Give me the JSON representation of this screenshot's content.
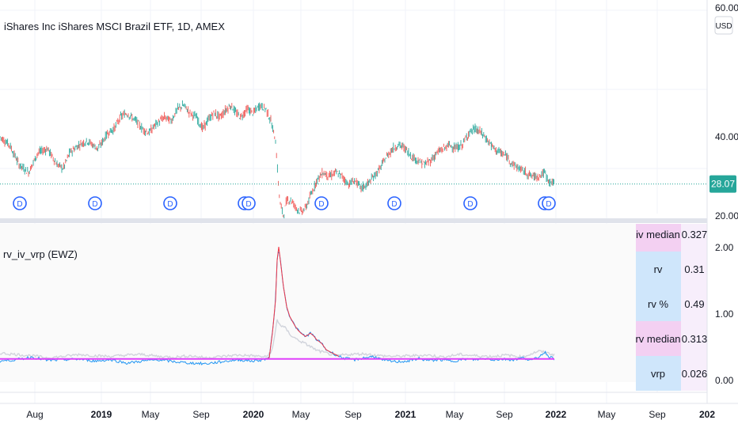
{
  "symbol_title": "iShares Inc iShares MSCI Brazil ETF, 1D, AMEX",
  "currency_button": "USD",
  "last_price_label": "28.07",
  "price_axis": {
    "top_partial": "60.00",
    "ticks": [
      {
        "value": 40,
        "label": "40.00"
      },
      {
        "value": 20,
        "label": "20.00"
      }
    ]
  },
  "dividend_marker_label": "D",
  "dividend_markers": [
    {
      "date": "2018-06",
      "double": false
    },
    {
      "date": "2018-12",
      "double": false
    },
    {
      "date": "2019-06",
      "double": false
    },
    {
      "date": "2019-12",
      "double": true
    },
    {
      "date": "2020-06",
      "double": false
    },
    {
      "date": "2020-12",
      "double": false
    },
    {
      "date": "2021-06",
      "double": false
    },
    {
      "date": "2021-12",
      "double": true
    }
  ],
  "indicator": {
    "title": "rv_iv_vrp (EWZ)",
    "axis_ticks": [
      {
        "value": 2,
        "label": "2.00"
      },
      {
        "value": 1,
        "label": "1.00"
      },
      {
        "value": 0,
        "label": "0.00"
      }
    ],
    "table": [
      {
        "label": "iv median",
        "value": "0.327",
        "color": "#f3d0f2"
      },
      {
        "label": "rv",
        "value": "0.31",
        "color": "#cfe6fb"
      },
      {
        "label": "rv %",
        "value": "0.49",
        "color": "#cfe6fb"
      },
      {
        "label": "rv median",
        "value": "0.313",
        "color": "#f3d0f2"
      },
      {
        "label": "vrp",
        "value": "0.026",
        "color": "#cfe6fb"
      }
    ]
  },
  "time_axis": [
    {
      "label": "Aug",
      "bold": false
    },
    {
      "label": "2019",
      "bold": true
    },
    {
      "label": "May",
      "bold": false
    },
    {
      "label": "Sep",
      "bold": false
    },
    {
      "label": "2020",
      "bold": true
    },
    {
      "label": "May",
      "bold": false
    },
    {
      "label": "Sep",
      "bold": false
    },
    {
      "label": "2021",
      "bold": true
    },
    {
      "label": "May",
      "bold": false
    },
    {
      "label": "Sep",
      "bold": false
    },
    {
      "label": "2022",
      "bold": true
    },
    {
      "label": "May",
      "bold": false
    },
    {
      "label": "Sep",
      "bold": false
    },
    {
      "label": "202",
      "bold": true
    }
  ],
  "colors": {
    "candle_up": "#26a69a",
    "candle_down": "#ef5350",
    "rv_line": "#2196f3",
    "rv_high": "#f23645",
    "iv_line": "#d1d4dc",
    "median_line": "#e040fb",
    "last_price_bg": "#26a69a",
    "dividend": "#2962ff"
  },
  "chart_data": {
    "type": "line",
    "title": "iShares Inc iShares MSCI Brazil ETF, 1D, AMEX",
    "ylim": [
      17,
      60
    ],
    "last_price": 28.07,
    "price_path": [
      [
        0,
        40
      ],
      [
        6,
        38
      ],
      [
        12,
        33
      ],
      [
        18,
        31
      ],
      [
        24,
        36
      ],
      [
        30,
        37
      ],
      [
        36,
        33
      ],
      [
        40,
        32
      ],
      [
        44,
        36
      ],
      [
        50,
        38
      ],
      [
        55,
        39
      ],
      [
        62,
        37
      ],
      [
        68,
        41
      ],
      [
        72,
        42
      ],
      [
        76,
        45
      ],
      [
        80,
        46
      ],
      [
        86,
        44
      ],
      [
        90,
        42
      ],
      [
        94,
        41
      ],
      [
        98,
        43
      ],
      [
        104,
        45
      ],
      [
        108,
        44
      ],
      [
        112,
        47
      ],
      [
        116,
        48
      ],
      [
        120,
        46
      ],
      [
        124,
        45
      ],
      [
        128,
        42
      ],
      [
        131,
        44
      ],
      [
        135,
        46
      ],
      [
        139,
        45
      ],
      [
        143,
        47
      ],
      [
        146,
        48
      ],
      [
        149,
        46
      ],
      [
        152,
        45
      ],
      [
        156,
        47
      ],
      [
        160,
        46
      ],
      [
        164,
        48
      ],
      [
        168,
        47
      ],
      [
        171,
        44
      ],
      [
        174,
        39
      ],
      [
        176,
        27
      ],
      [
        177,
        23
      ],
      [
        179,
        20
      ],
      [
        181,
        24
      ],
      [
        184,
        24
      ],
      [
        187,
        22
      ],
      [
        190,
        21
      ],
      [
        193,
        22
      ],
      [
        196,
        25
      ],
      [
        200,
        29
      ],
      [
        204,
        31
      ],
      [
        208,
        30
      ],
      [
        212,
        31
      ],
      [
        216,
        30
      ],
      [
        220,
        28
      ],
      [
        224,
        29
      ],
      [
        228,
        27
      ],
      [
        232,
        28
      ],
      [
        236,
        30
      ],
      [
        240,
        32
      ],
      [
        244,
        35
      ],
      [
        248,
        37
      ],
      [
        252,
        38
      ],
      [
        256,
        37
      ],
      [
        260,
        35
      ],
      [
        264,
        34
      ],
      [
        268,
        33
      ],
      [
        272,
        34
      ],
      [
        276,
        36
      ],
      [
        280,
        37
      ],
      [
        284,
        38
      ],
      [
        288,
        37
      ],
      [
        292,
        38
      ],
      [
        296,
        41
      ],
      [
        300,
        42
      ],
      [
        304,
        41
      ],
      [
        308,
        39
      ],
      [
        312,
        37
      ],
      [
        316,
        36
      ],
      [
        320,
        35
      ],
      [
        324,
        33
      ],
      [
        328,
        32
      ],
      [
        332,
        31
      ],
      [
        336,
        30
      ],
      [
        340,
        30
      ],
      [
        344,
        31
      ],
      [
        346,
        29
      ],
      [
        350,
        28.07
      ]
    ],
    "indicator": {
      "ylim": [
        0,
        2.1
      ],
      "median": 0.313,
      "rv_path": [
        [
          0,
          0.28
        ],
        [
          10,
          0.3
        ],
        [
          20,
          0.34
        ],
        [
          30,
          0.29
        ],
        [
          40,
          0.3
        ],
        [
          50,
          0.31
        ],
        [
          60,
          0.28
        ],
        [
          70,
          0.3
        ],
        [
          80,
          0.25
        ],
        [
          90,
          0.28
        ],
        [
          100,
          0.3
        ],
        [
          110,
          0.27
        ],
        [
          120,
          0.25
        ],
        [
          130,
          0.24
        ],
        [
          140,
          0.27
        ],
        [
          150,
          0.3
        ],
        [
          160,
          0.28
        ],
        [
          166,
          0.3
        ],
        [
          170,
          0.33
        ],
        [
          172,
          0.7
        ],
        [
          174,
          1.2
        ],
        [
          175,
          1.8
        ],
        [
          176,
          2.0
        ],
        [
          177,
          1.8
        ],
        [
          179,
          1.4
        ],
        [
          181,
          1.1
        ],
        [
          183,
          0.95
        ],
        [
          186,
          0.82
        ],
        [
          188,
          0.75
        ],
        [
          190,
          0.7
        ],
        [
          193,
          0.65
        ],
        [
          196,
          0.7
        ],
        [
          198,
          0.66
        ],
        [
          200,
          0.6
        ],
        [
          203,
          0.55
        ],
        [
          206,
          0.45
        ],
        [
          210,
          0.4
        ],
        [
          214,
          0.35
        ],
        [
          218,
          0.32
        ],
        [
          224,
          0.3
        ],
        [
          230,
          0.33
        ],
        [
          236,
          0.35
        ],
        [
          242,
          0.29
        ],
        [
          250,
          0.27
        ],
        [
          258,
          0.28
        ],
        [
          264,
          0.32
        ],
        [
          270,
          0.29
        ],
        [
          278,
          0.3
        ],
        [
          286,
          0.28
        ],
        [
          294,
          0.31
        ],
        [
          300,
          0.3
        ],
        [
          306,
          0.32
        ],
        [
          312,
          0.3
        ],
        [
          318,
          0.31
        ],
        [
          324,
          0.3
        ],
        [
          330,
          0.33
        ],
        [
          336,
          0.29
        ],
        [
          340,
          0.34
        ],
        [
          344,
          0.42
        ],
        [
          346,
          0.36
        ],
        [
          350,
          0.31
        ]
      ],
      "iv_path": [
        [
          0,
          0.4
        ],
        [
          10,
          0.38
        ],
        [
          20,
          0.36
        ],
        [
          30,
          0.33
        ],
        [
          40,
          0.35
        ],
        [
          50,
          0.38
        ],
        [
          60,
          0.36
        ],
        [
          70,
          0.35
        ],
        [
          80,
          0.37
        ],
        [
          90,
          0.38
        ],
        [
          100,
          0.35
        ],
        [
          110,
          0.34
        ],
        [
          120,
          0.36
        ],
        [
          130,
          0.33
        ],
        [
          140,
          0.35
        ],
        [
          150,
          0.37
        ],
        [
          160,
          0.36
        ],
        [
          168,
          0.34
        ],
        [
          172,
          0.45
        ],
        [
          175,
          0.9
        ],
        [
          177,
          0.82
        ],
        [
          180,
          0.78
        ],
        [
          184,
          0.66
        ],
        [
          188,
          0.6
        ],
        [
          192,
          0.55
        ],
        [
          196,
          0.5
        ],
        [
          200,
          0.44
        ],
        [
          206,
          0.4
        ],
        [
          212,
          0.36
        ],
        [
          220,
          0.38
        ],
        [
          230,
          0.39
        ],
        [
          240,
          0.36
        ],
        [
          250,
          0.35
        ],
        [
          260,
          0.36
        ],
        [
          270,
          0.37
        ],
        [
          280,
          0.34
        ],
        [
          290,
          0.38
        ],
        [
          300,
          0.36
        ],
        [
          310,
          0.35
        ],
        [
          320,
          0.37
        ],
        [
          330,
          0.34
        ],
        [
          340,
          0.43
        ],
        [
          346,
          0.4
        ],
        [
          350,
          0.37
        ]
      ]
    }
  }
}
